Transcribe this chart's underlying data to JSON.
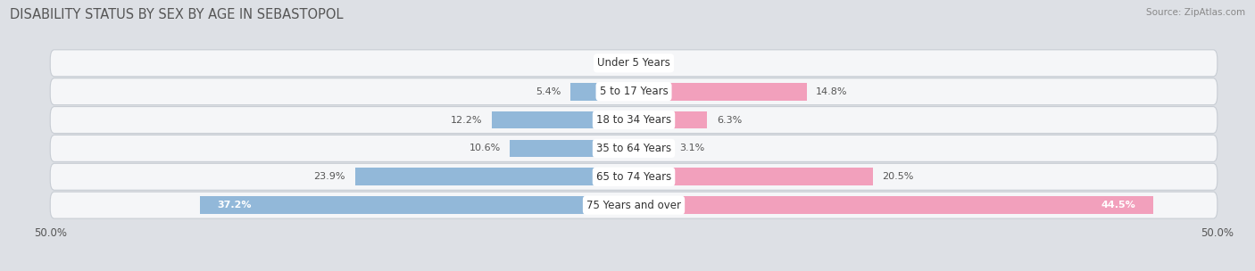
{
  "title": "DISABILITY STATUS BY SEX BY AGE IN SEBASTOPOL",
  "source": "Source: ZipAtlas.com",
  "categories": [
    "Under 5 Years",
    "5 to 17 Years",
    "18 to 34 Years",
    "35 to 64 Years",
    "65 to 74 Years",
    "75 Years and over"
  ],
  "male_values": [
    0.0,
    5.4,
    12.2,
    10.6,
    23.9,
    37.2
  ],
  "female_values": [
    0.0,
    14.8,
    6.3,
    3.1,
    20.5,
    44.5
  ],
  "male_color": "#92b8d9",
  "female_color": "#f2a0bc",
  "male_color_dark": "#5b9bd5",
  "female_color_dark": "#ee6fa0",
  "bar_height": 0.62,
  "row_bg_color": "#e8eaed",
  "row_inner_color": "#f5f6f8",
  "background_color": "#dde0e5",
  "title_fontsize": 10.5,
  "label_fontsize": 8.5,
  "value_fontsize": 8.0,
  "legend_fontsize": 9
}
